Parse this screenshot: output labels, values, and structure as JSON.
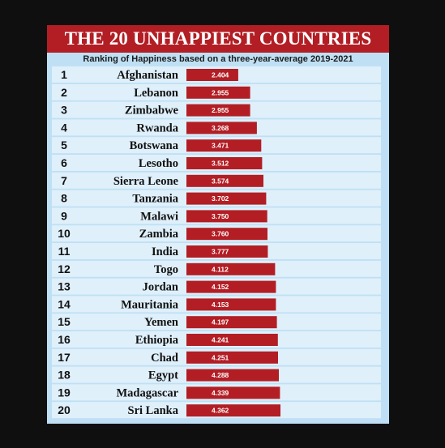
{
  "header": {
    "title": "THE 20 UNHAPPIEST COUNTRIES",
    "subtitle": "Ranking of Happiness based on a three-year-average 2019-2021"
  },
  "colors": {
    "title_bg": "#b21e24",
    "bar": "#b21e24",
    "row_light": "#dff0fb",
    "row_dark": "#bfe0f4",
    "background": "#0f0f10"
  },
  "chart_data": {
    "type": "bar",
    "orientation": "horizontal",
    "title": "THE 20 UNHAPPIEST COUNTRIES",
    "subtitle": "Ranking of Happiness based on a three-year-average 2019-2021",
    "ranks": [
      "1",
      "2",
      "3",
      "4",
      "5",
      "6",
      "7",
      "8",
      "9",
      "10",
      "11",
      "12",
      "13",
      "14",
      "15",
      "16",
      "17",
      "18",
      "19",
      "20"
    ],
    "categories": [
      "Afghanistan",
      "Lebanon",
      "Zimbabwe",
      "Rwanda",
      "Botswana",
      "Lesotho",
      "Sierra Leone",
      "Tanzania",
      "Malawi",
      "Zambia",
      "India",
      "Togo",
      "Jordan",
      "Mauritania",
      "Yemen",
      "Ethiopia",
      "Chad",
      "Egypt",
      "Madagascar",
      "Sri Lanka"
    ],
    "value_labels": [
      "2.404",
      "2.955",
      "2.955",
      "3.268",
      "3.471",
      "3.512",
      "3.574",
      "3.702",
      "3.750",
      "3.760",
      "3.777",
      "4.112",
      "4.152",
      "4.153",
      "4.197",
      "4.241",
      "4.251",
      "4.288",
      "4.339",
      "4.362"
    ],
    "values": [
      2.404,
      2.955,
      2.955,
      3.268,
      3.471,
      3.512,
      3.574,
      3.702,
      3.75,
      3.76,
      3.777,
      4.112,
      4.152,
      4.153,
      4.197,
      4.241,
      4.251,
      4.288,
      4.339,
      4.362
    ],
    "xlim": [
      0,
      4.362
    ],
    "grid": false,
    "legend": "none"
  }
}
